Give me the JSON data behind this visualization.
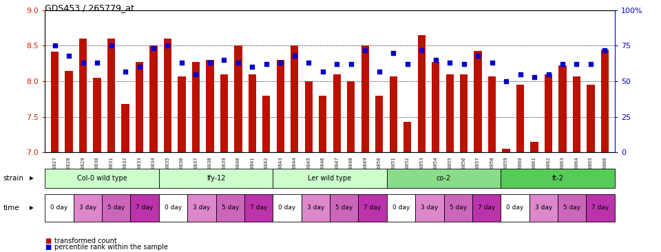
{
  "title": "GDS453 / 265779_at",
  "gsm_labels": [
    "GSM8827",
    "GSM8828",
    "GSM8829",
    "GSM8830",
    "GSM8831",
    "GSM8832",
    "GSM8833",
    "GSM8834",
    "GSM8835",
    "GSM8836",
    "GSM8837",
    "GSM8838",
    "GSM8839",
    "GSM8840",
    "GSM8841",
    "GSM8842",
    "GSM8843",
    "GSM8844",
    "GSM8845",
    "GSM8846",
    "GSM8847",
    "GSM8848",
    "GSM8849",
    "GSM8850",
    "GSM8851",
    "GSM8852",
    "GSM8853",
    "GSM8854",
    "GSM8855",
    "GSM8856",
    "GSM8857",
    "GSM8858",
    "GSM8859",
    "GSM8860",
    "GSM8861",
    "GSM8862",
    "GSM8863",
    "GSM8864",
    "GSM8865",
    "GSM8866"
  ],
  "bar_values": [
    8.42,
    8.15,
    8.6,
    8.05,
    8.6,
    7.68,
    8.27,
    8.5,
    8.6,
    8.07,
    8.27,
    8.3,
    8.1,
    8.5,
    8.1,
    7.8,
    8.3,
    8.5,
    8.0,
    7.8,
    8.1,
    8.0,
    8.5,
    7.8,
    8.07,
    7.43,
    8.65,
    8.27,
    8.1,
    8.1,
    8.43,
    8.07,
    7.05,
    7.95,
    7.15,
    8.1,
    8.22,
    8.07,
    7.95,
    8.45
  ],
  "percentile_values": [
    75,
    68,
    63,
    63,
    75,
    57,
    60,
    73,
    75,
    63,
    55,
    63,
    65,
    63,
    60,
    62,
    63,
    68,
    63,
    57,
    62,
    62,
    72,
    57,
    70,
    62,
    72,
    65,
    63,
    62,
    68,
    63,
    50,
    55,
    53,
    55,
    62,
    62,
    62,
    72
  ],
  "ylim_left": [
    7.0,
    9.0
  ],
  "ylim_right": [
    0,
    100
  ],
  "yticks_left": [
    7.0,
    7.5,
    8.0,
    8.5,
    9.0
  ],
  "yticks_right": [
    0,
    25,
    50,
    75,
    100
  ],
  "ytick_labels_right": [
    "0",
    "25",
    "50",
    "75",
    "100%"
  ],
  "bar_color": "#bb1100",
  "dot_color": "#0000cc",
  "bar_bottom": 7.0,
  "strains": [
    {
      "label": "Col-0 wild type",
      "start": 0,
      "end": 8,
      "color": "#ccffcc"
    },
    {
      "label": "lfy-12",
      "start": 8,
      "end": 16,
      "color": "#ccffcc"
    },
    {
      "label": "Ler wild type",
      "start": 16,
      "end": 24,
      "color": "#ccffcc"
    },
    {
      "label": "co-2",
      "start": 24,
      "end": 32,
      "color": "#88dd88"
    },
    {
      "label": "ft-2",
      "start": 32,
      "end": 40,
      "color": "#55cc55"
    }
  ],
  "time_labels": [
    "0 day",
    "3 day",
    "5 day",
    "7 day"
  ],
  "time_colors": [
    "#ffffff",
    "#dd88cc",
    "#cc66bb",
    "#bb33aa"
  ],
  "legend_items": [
    {
      "color": "#bb1100",
      "label": "transformed count"
    },
    {
      "color": "#0000cc",
      "label": "percentile rank within the sample"
    }
  ]
}
